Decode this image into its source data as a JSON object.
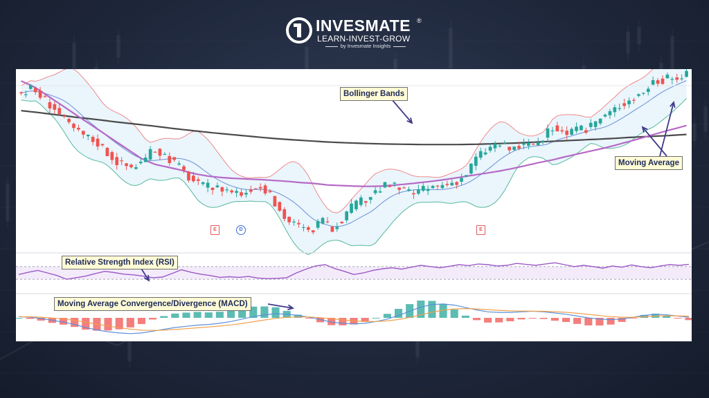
{
  "brand": {
    "name": "INVESMATE",
    "registered": "®",
    "tagline": "LEARN-INVEST-GROW",
    "byline": "by Invesmate Insights"
  },
  "annotations": {
    "bollinger": "Bollinger Bands",
    "moving_average": "Moving Average",
    "rsi": "Relative Strength Index (RSI)",
    "macd": "Moving Average Convergence/Divergence (MACD)"
  },
  "event_markers": [
    {
      "label": "E",
      "kind": "earnings"
    },
    {
      "label": "D",
      "kind": "dividend"
    },
    {
      "label": "E",
      "kind": "earnings"
    }
  ],
  "colors": {
    "up": "#26a69a",
    "down": "#ef5350",
    "bb_upper": "#f08a8a",
    "bb_lower": "#56b99a",
    "bb_mid": "#6b8fd6",
    "ma_fast": "#b668c6",
    "ma_slow": "#4a4a4a",
    "rsi": "#9b59c6",
    "macd": "#5b8fd9",
    "signal": "#f0a04b",
    "arrow": "#3f3a8a"
  },
  "chart_data": {
    "type": "candlestick",
    "price_path": [
      104,
      105.5,
      102,
      99,
      94,
      91,
      89,
      87,
      83,
      80,
      79,
      81,
      85,
      83,
      80,
      76,
      73,
      72,
      72,
      71,
      70,
      73,
      71.5,
      66,
      61,
      59,
      57,
      61,
      58,
      62,
      66,
      68,
      71,
      73,
      72,
      70,
      71,
      72,
      73,
      74,
      76,
      82,
      85,
      87,
      85,
      86,
      86.5,
      88,
      93,
      90,
      91,
      92,
      95,
      97,
      100,
      102,
      104,
      108,
      108.5,
      109,
      110
    ],
    "ma_slow": [
      98,
      97.3,
      96.5,
      95.7,
      95,
      94.2,
      93.5,
      92.8,
      92,
      91.3,
      90.6,
      90,
      89.4,
      88.8,
      88.3,
      87.9,
      87.5,
      87.2,
      87,
      86.8,
      86.7,
      86.6,
      86.6,
      86.6,
      86.7,
      86.9,
      87.1,
      87.4,
      87.7,
      88,
      88.3,
      88.6,
      89,
      89.3,
      89.6,
      90
    ],
    "ma_fast": [
      108,
      106,
      103,
      100,
      97,
      94,
      91,
      88,
      85,
      82,
      80,
      79,
      78,
      76.8,
      76,
      75.5,
      75.2,
      75,
      74.8,
      74.5,
      74.2,
      73.8,
      73.5,
      73,
      72.8,
      72.6,
      72.5,
      72.6,
      72.9,
      73.3,
      73.8,
      74.3,
      74.9,
      75.6,
      76.3,
      77,
      77.7,
      78.6,
      79.6,
      80.6,
      81.5,
      82.6,
      83.6,
      84.6,
      85.6,
      86.8,
      88,
      89.3,
      90.6,
      91.8,
      93
    ],
    "rsi": [
      45,
      52,
      58,
      50,
      42,
      30,
      35,
      40,
      48,
      55,
      51,
      46,
      44,
      40,
      35,
      37,
      48,
      60,
      52,
      46,
      42,
      36,
      38,
      36,
      39,
      34,
      32,
      33,
      35,
      50,
      62,
      72,
      76,
      64,
      55,
      45,
      50,
      58,
      63,
      66,
      62,
      68,
      74,
      70,
      66,
      71,
      76,
      73,
      78,
      76,
      72,
      74,
      80,
      77,
      74,
      78,
      82,
      76,
      70,
      74,
      70,
      65,
      72,
      68,
      75,
      70,
      66,
      72,
      76,
      74,
      77
    ],
    "rsi_levels": [
      70,
      30
    ],
    "macd": [
      0.1,
      0.05,
      -0.05,
      -0.2,
      -0.35,
      -0.55,
      -0.8,
      -1.0,
      -1.15,
      -1.25,
      -1.3,
      -1.25,
      -1.1,
      -0.95,
      -0.8,
      -0.7,
      -0.6,
      -0.55,
      -0.45,
      -0.3,
      -0.1,
      0.1,
      0.25,
      0.35,
      0.3,
      0.2,
      0.05,
      -0.15,
      -0.35,
      -0.45,
      -0.5,
      -0.45,
      -0.3,
      -0.1,
      0.2,
      0.55,
      0.9,
      1.1,
      1.15,
      1.05,
      0.85,
      0.65,
      0.5,
      0.45,
      0.45,
      0.5,
      0.55,
      0.5,
      0.4,
      0.3,
      0.15,
      0.0,
      -0.1,
      -0.15,
      -0.1,
      0.05,
      0.2,
      0.3,
      0.25,
      0.15,
      0.05
    ],
    "ylim_price": [
      55,
      112
    ],
    "ylim_rsi": [
      0,
      100
    ],
    "ylim_macd": [
      -1.6,
      1.6
    ]
  }
}
